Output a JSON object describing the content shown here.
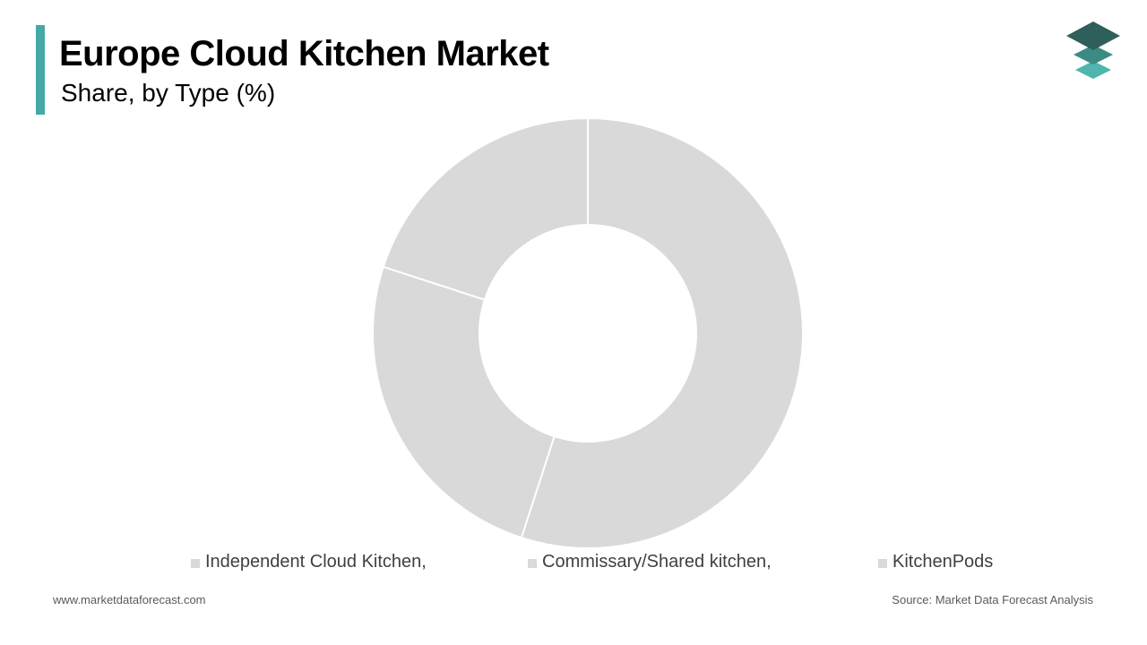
{
  "header": {
    "title": "Europe Cloud Kitchen Market",
    "subtitle": "Share, by Type (%)",
    "accent_color": "#45aaa7"
  },
  "logo": {
    "icon": "stacked-layers-logo-icon",
    "colors": [
      "#2f5f5a",
      "#3d8a84",
      "#4fb5ae"
    ]
  },
  "chart_data": {
    "type": "pie",
    "donut": true,
    "segment_color": "#d9d9d9",
    "separator_color": "#ffffff",
    "legend_position": "bottom",
    "categories": [
      "Independent Cloud Kitchen,",
      "Commissary/Shared kitchen,",
      "KitchenPods"
    ],
    "values": [
      55,
      25,
      20
    ]
  },
  "footer": {
    "website": "www.marketdataforecast.com",
    "source": "Source: Market Data Forecast Analysis"
  }
}
